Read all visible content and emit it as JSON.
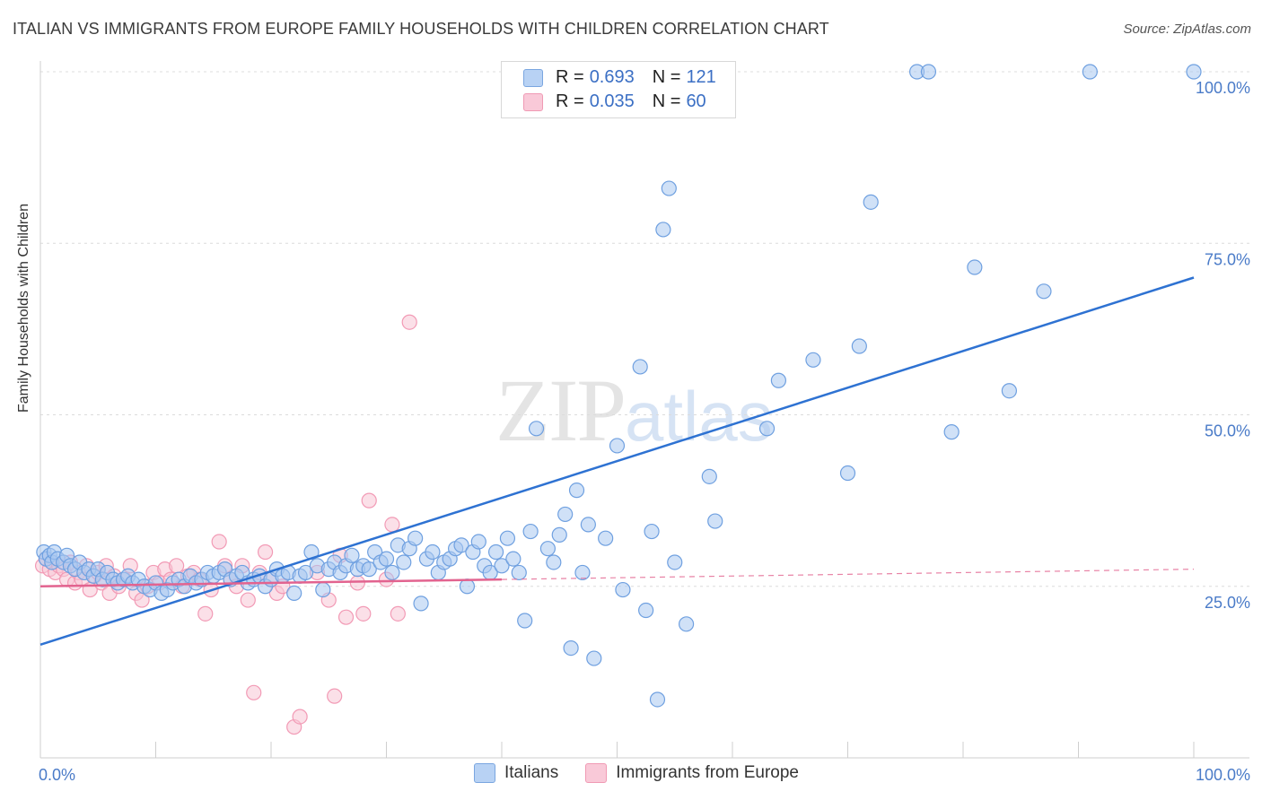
{
  "chart_data": {
    "type": "scatter",
    "title": "ITALIAN VS IMMIGRANTS FROM EUROPE FAMILY HOUSEHOLDS WITH CHILDREN CORRELATION CHART",
    "source": "Source: ZipAtlas.com",
    "xlabel": "",
    "ylabel": "Family Households with Children",
    "xlim": [
      0,
      100
    ],
    "ylim": [
      0,
      100
    ],
    "x_tick_labels": [
      "0.0%",
      "100.0%"
    ],
    "y_tick_values": [
      25,
      50,
      75,
      100
    ],
    "y_tick_labels": [
      "25.0%",
      "50.0%",
      "75.0%",
      "100.0%"
    ],
    "grid": true,
    "watermark": {
      "zip": "ZIP",
      "atlas": "atlas"
    },
    "legend": {
      "rows": [
        {
          "r_label": "R =",
          "r_value": "0.693",
          "n_label": "N =",
          "n_value": "121"
        },
        {
          "r_label": "R =",
          "r_value": "0.035",
          "n_label": "N =",
          "n_value": "60"
        }
      ]
    },
    "series": [
      {
        "name": "Italians",
        "color": "#6fa0e0",
        "fill": "#a9c8f0",
        "line_color": "#2e72d2",
        "trend": {
          "x": [
            0,
            100
          ],
          "y": [
            16.5,
            70
          ]
        },
        "points": [
          [
            0.3,
            30
          ],
          [
            0.5,
            29
          ],
          [
            0.8,
            29.5
          ],
          [
            1,
            28.5
          ],
          [
            1.2,
            30
          ],
          [
            1.5,
            29
          ],
          [
            2,
            28.5
          ],
          [
            2.3,
            29.5
          ],
          [
            2.6,
            28
          ],
          [
            3,
            27.5
          ],
          [
            3.4,
            28.5
          ],
          [
            3.8,
            27
          ],
          [
            4.2,
            27.5
          ],
          [
            4.6,
            26.5
          ],
          [
            5,
            27.5
          ],
          [
            5.4,
            26
          ],
          [
            5.8,
            27
          ],
          [
            6.3,
            26
          ],
          [
            6.7,
            25.5
          ],
          [
            7.2,
            26
          ],
          [
            7.6,
            26.5
          ],
          [
            8,
            25.5
          ],
          [
            8.5,
            26
          ],
          [
            9,
            25
          ],
          [
            9.5,
            24.5
          ],
          [
            10,
            25.5
          ],
          [
            10.5,
            24
          ],
          [
            11,
            24.5
          ],
          [
            11.5,
            25.5
          ],
          [
            12,
            26
          ],
          [
            12.5,
            25
          ],
          [
            13,
            26.5
          ],
          [
            13.5,
            25.5
          ],
          [
            14,
            26
          ],
          [
            14.5,
            27
          ],
          [
            15,
            26.5
          ],
          [
            15.5,
            27
          ],
          [
            16,
            27.5
          ],
          [
            16.5,
            26
          ],
          [
            17,
            26.5
          ],
          [
            17.5,
            27
          ],
          [
            18,
            25.5
          ],
          [
            18.5,
            26
          ],
          [
            19,
            26.5
          ],
          [
            19.5,
            25
          ],
          [
            20,
            26
          ],
          [
            20.5,
            27.5
          ],
          [
            21,
            26.5
          ],
          [
            21.5,
            27
          ],
          [
            22,
            24
          ],
          [
            22.5,
            26.5
          ],
          [
            23,
            27
          ],
          [
            23.5,
            30
          ],
          [
            24,
            28
          ],
          [
            24.5,
            24.5
          ],
          [
            25,
            27.5
          ],
          [
            25.5,
            28.5
          ],
          [
            26,
            27
          ],
          [
            26.5,
            28
          ],
          [
            27,
            29.5
          ],
          [
            27.5,
            27.5
          ],
          [
            28,
            28
          ],
          [
            28.5,
            27.5
          ],
          [
            29,
            30
          ],
          [
            29.5,
            28.5
          ],
          [
            30,
            29
          ],
          [
            30.5,
            27
          ],
          [
            31,
            31
          ],
          [
            31.5,
            28.5
          ],
          [
            32,
            30.5
          ],
          [
            32.5,
            32
          ],
          [
            33,
            22.5
          ],
          [
            33.5,
            29
          ],
          [
            34,
            30
          ],
          [
            34.5,
            27
          ],
          [
            35,
            28.5
          ],
          [
            35.5,
            29
          ],
          [
            36,
            30.5
          ],
          [
            36.5,
            31
          ],
          [
            37,
            25
          ],
          [
            37.5,
            30
          ],
          [
            38,
            31.5
          ],
          [
            38.5,
            28
          ],
          [
            39,
            27
          ],
          [
            39.5,
            30
          ],
          [
            40,
            28
          ],
          [
            40.5,
            32
          ],
          [
            41,
            29
          ],
          [
            41.5,
            27
          ],
          [
            42,
            20
          ],
          [
            42.5,
            33
          ],
          [
            43,
            48
          ],
          [
            44,
            30.5
          ],
          [
            44.5,
            28.5
          ],
          [
            45,
            32.5
          ],
          [
            45.5,
            35.5
          ],
          [
            46,
            16
          ],
          [
            46.5,
            39
          ],
          [
            47,
            27
          ],
          [
            47.5,
            34
          ],
          [
            48,
            14.5
          ],
          [
            49,
            32
          ],
          [
            50,
            45.5
          ],
          [
            50.5,
            24.5
          ],
          [
            52,
            57
          ],
          [
            52.5,
            21.5
          ],
          [
            53,
            33
          ],
          [
            53.5,
            8.5
          ],
          [
            54,
            77
          ],
          [
            54.5,
            83
          ],
          [
            55,
            28.5
          ],
          [
            56,
            19.5
          ],
          [
            58,
            41
          ],
          [
            58.5,
            34.5
          ],
          [
            63,
            48
          ],
          [
            64,
            55
          ],
          [
            67,
            58
          ],
          [
            70,
            41.5
          ],
          [
            71,
            60
          ],
          [
            72,
            81
          ],
          [
            76,
            100
          ],
          [
            77,
            100
          ],
          [
            79,
            47.5
          ],
          [
            81,
            71.5
          ],
          [
            84,
            53.5
          ],
          [
            87,
            68
          ],
          [
            91,
            100
          ],
          [
            100,
            100
          ]
        ]
      },
      {
        "name": "Immigrants from Europe",
        "color": "#f29ab5",
        "fill": "#f8c6d6",
        "line_color": "#e2638f",
        "trend": {
          "x": [
            0,
            40
          ],
          "y": [
            25,
            26
          ]
        },
        "trend_dashed": {
          "x": [
            40,
            100
          ],
          "y": [
            26,
            27.5
          ]
        },
        "points": [
          [
            0.2,
            28
          ],
          [
            0.5,
            29
          ],
          [
            0.8,
            27.5
          ],
          [
            1,
            28.5
          ],
          [
            1.3,
            27
          ],
          [
            1.6,
            28
          ],
          [
            2,
            27.5
          ],
          [
            2.3,
            26
          ],
          [
            2.6,
            28.5
          ],
          [
            3,
            25.5
          ],
          [
            3.3,
            27
          ],
          [
            3.6,
            26
          ],
          [
            4,
            28
          ],
          [
            4.3,
            24.5
          ],
          [
            4.7,
            26.5
          ],
          [
            5,
            27
          ],
          [
            5.3,
            25.5
          ],
          [
            5.7,
            28
          ],
          [
            6,
            24
          ],
          [
            6.4,
            26.5
          ],
          [
            6.8,
            25
          ],
          [
            7.3,
            26
          ],
          [
            7.8,
            28
          ],
          [
            8.3,
            24
          ],
          [
            8.8,
            23
          ],
          [
            9.3,
            25
          ],
          [
            9.8,
            27
          ],
          [
            10.3,
            25.5
          ],
          [
            10.8,
            27.5
          ],
          [
            11.3,
            26
          ],
          [
            11.8,
            28
          ],
          [
            12.3,
            25
          ],
          [
            12.8,
            26.5
          ],
          [
            13.3,
            27
          ],
          [
            13.8,
            26
          ],
          [
            14.3,
            21
          ],
          [
            14.8,
            24.5
          ],
          [
            15.5,
            31.5
          ],
          [
            16,
            28
          ],
          [
            16.5,
            26
          ],
          [
            17,
            25
          ],
          [
            17.5,
            28
          ],
          [
            18,
            23
          ],
          [
            18.5,
            9.5
          ],
          [
            19,
            27
          ],
          [
            19.5,
            30
          ],
          [
            20,
            26
          ],
          [
            20.5,
            24
          ],
          [
            21,
            25
          ],
          [
            22,
            4.5
          ],
          [
            22.5,
            6
          ],
          [
            24,
            27
          ],
          [
            25,
            23
          ],
          [
            25.5,
            9
          ],
          [
            26,
            29.5
          ],
          [
            26.5,
            20.5
          ],
          [
            27.5,
            25.5
          ],
          [
            28,
            21
          ],
          [
            28.5,
            37.5
          ],
          [
            30,
            26
          ],
          [
            30.5,
            34
          ],
          [
            31,
            21
          ],
          [
            32,
            63.5
          ]
        ]
      }
    ]
  }
}
